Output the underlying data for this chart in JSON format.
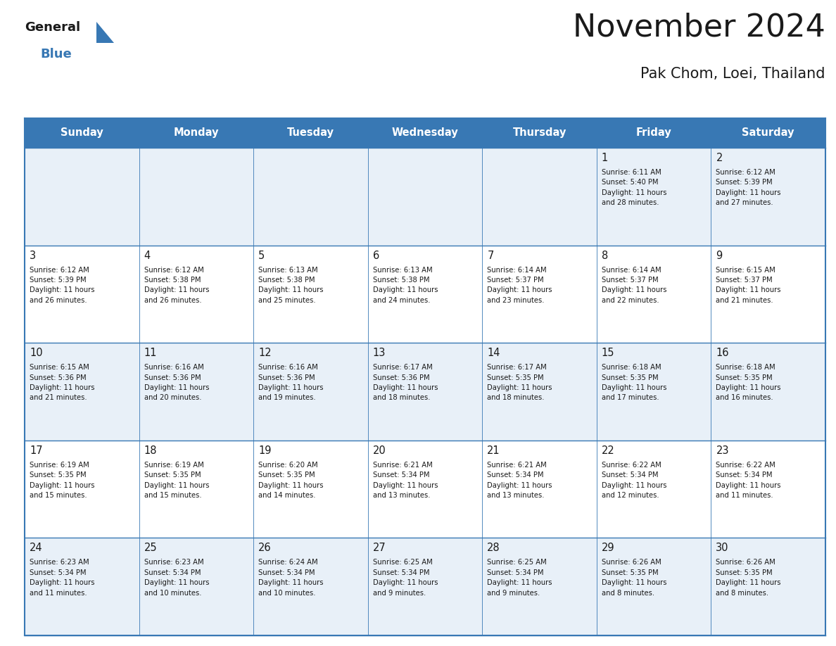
{
  "title": "November 2024",
  "subtitle": "Pak Chom, Loei, Thailand",
  "header_color": "#3878b4",
  "header_text_color": "#ffffff",
  "background_color": "#ffffff",
  "cell_bg_even": "#e8f0f8",
  "cell_bg_odd": "#ffffff",
  "border_color": "#3878b4",
  "text_color": "#1a1a1a",
  "day_names": [
    "Sunday",
    "Monday",
    "Tuesday",
    "Wednesday",
    "Thursday",
    "Friday",
    "Saturday"
  ],
  "weeks": [
    [
      {
        "day": null,
        "text": ""
      },
      {
        "day": null,
        "text": ""
      },
      {
        "day": null,
        "text": ""
      },
      {
        "day": null,
        "text": ""
      },
      {
        "day": null,
        "text": ""
      },
      {
        "day": 1,
        "text": "Sunrise: 6:11 AM\nSunset: 5:40 PM\nDaylight: 11 hours\nand 28 minutes."
      },
      {
        "day": 2,
        "text": "Sunrise: 6:12 AM\nSunset: 5:39 PM\nDaylight: 11 hours\nand 27 minutes."
      }
    ],
    [
      {
        "day": 3,
        "text": "Sunrise: 6:12 AM\nSunset: 5:39 PM\nDaylight: 11 hours\nand 26 minutes."
      },
      {
        "day": 4,
        "text": "Sunrise: 6:12 AM\nSunset: 5:38 PM\nDaylight: 11 hours\nand 26 minutes."
      },
      {
        "day": 5,
        "text": "Sunrise: 6:13 AM\nSunset: 5:38 PM\nDaylight: 11 hours\nand 25 minutes."
      },
      {
        "day": 6,
        "text": "Sunrise: 6:13 AM\nSunset: 5:38 PM\nDaylight: 11 hours\nand 24 minutes."
      },
      {
        "day": 7,
        "text": "Sunrise: 6:14 AM\nSunset: 5:37 PM\nDaylight: 11 hours\nand 23 minutes."
      },
      {
        "day": 8,
        "text": "Sunrise: 6:14 AM\nSunset: 5:37 PM\nDaylight: 11 hours\nand 22 minutes."
      },
      {
        "day": 9,
        "text": "Sunrise: 6:15 AM\nSunset: 5:37 PM\nDaylight: 11 hours\nand 21 minutes."
      }
    ],
    [
      {
        "day": 10,
        "text": "Sunrise: 6:15 AM\nSunset: 5:36 PM\nDaylight: 11 hours\nand 21 minutes."
      },
      {
        "day": 11,
        "text": "Sunrise: 6:16 AM\nSunset: 5:36 PM\nDaylight: 11 hours\nand 20 minutes."
      },
      {
        "day": 12,
        "text": "Sunrise: 6:16 AM\nSunset: 5:36 PM\nDaylight: 11 hours\nand 19 minutes."
      },
      {
        "day": 13,
        "text": "Sunrise: 6:17 AM\nSunset: 5:36 PM\nDaylight: 11 hours\nand 18 minutes."
      },
      {
        "day": 14,
        "text": "Sunrise: 6:17 AM\nSunset: 5:35 PM\nDaylight: 11 hours\nand 18 minutes."
      },
      {
        "day": 15,
        "text": "Sunrise: 6:18 AM\nSunset: 5:35 PM\nDaylight: 11 hours\nand 17 minutes."
      },
      {
        "day": 16,
        "text": "Sunrise: 6:18 AM\nSunset: 5:35 PM\nDaylight: 11 hours\nand 16 minutes."
      }
    ],
    [
      {
        "day": 17,
        "text": "Sunrise: 6:19 AM\nSunset: 5:35 PM\nDaylight: 11 hours\nand 15 minutes."
      },
      {
        "day": 18,
        "text": "Sunrise: 6:19 AM\nSunset: 5:35 PM\nDaylight: 11 hours\nand 15 minutes."
      },
      {
        "day": 19,
        "text": "Sunrise: 6:20 AM\nSunset: 5:35 PM\nDaylight: 11 hours\nand 14 minutes."
      },
      {
        "day": 20,
        "text": "Sunrise: 6:21 AM\nSunset: 5:34 PM\nDaylight: 11 hours\nand 13 minutes."
      },
      {
        "day": 21,
        "text": "Sunrise: 6:21 AM\nSunset: 5:34 PM\nDaylight: 11 hours\nand 13 minutes."
      },
      {
        "day": 22,
        "text": "Sunrise: 6:22 AM\nSunset: 5:34 PM\nDaylight: 11 hours\nand 12 minutes."
      },
      {
        "day": 23,
        "text": "Sunrise: 6:22 AM\nSunset: 5:34 PM\nDaylight: 11 hours\nand 11 minutes."
      }
    ],
    [
      {
        "day": 24,
        "text": "Sunrise: 6:23 AM\nSunset: 5:34 PM\nDaylight: 11 hours\nand 11 minutes."
      },
      {
        "day": 25,
        "text": "Sunrise: 6:23 AM\nSunset: 5:34 PM\nDaylight: 11 hours\nand 10 minutes."
      },
      {
        "day": 26,
        "text": "Sunrise: 6:24 AM\nSunset: 5:34 PM\nDaylight: 11 hours\nand 10 minutes."
      },
      {
        "day": 27,
        "text": "Sunrise: 6:25 AM\nSunset: 5:34 PM\nDaylight: 11 hours\nand 9 minutes."
      },
      {
        "day": 28,
        "text": "Sunrise: 6:25 AM\nSunset: 5:34 PM\nDaylight: 11 hours\nand 9 minutes."
      },
      {
        "day": 29,
        "text": "Sunrise: 6:26 AM\nSunset: 5:35 PM\nDaylight: 11 hours\nand 8 minutes."
      },
      {
        "day": 30,
        "text": "Sunrise: 6:26 AM\nSunset: 5:35 PM\nDaylight: 11 hours\nand 8 minutes."
      }
    ]
  ],
  "logo_general_color": "#1a1a1a",
  "logo_blue_color": "#3878b4",
  "logo_triangle_color": "#3878b4"
}
